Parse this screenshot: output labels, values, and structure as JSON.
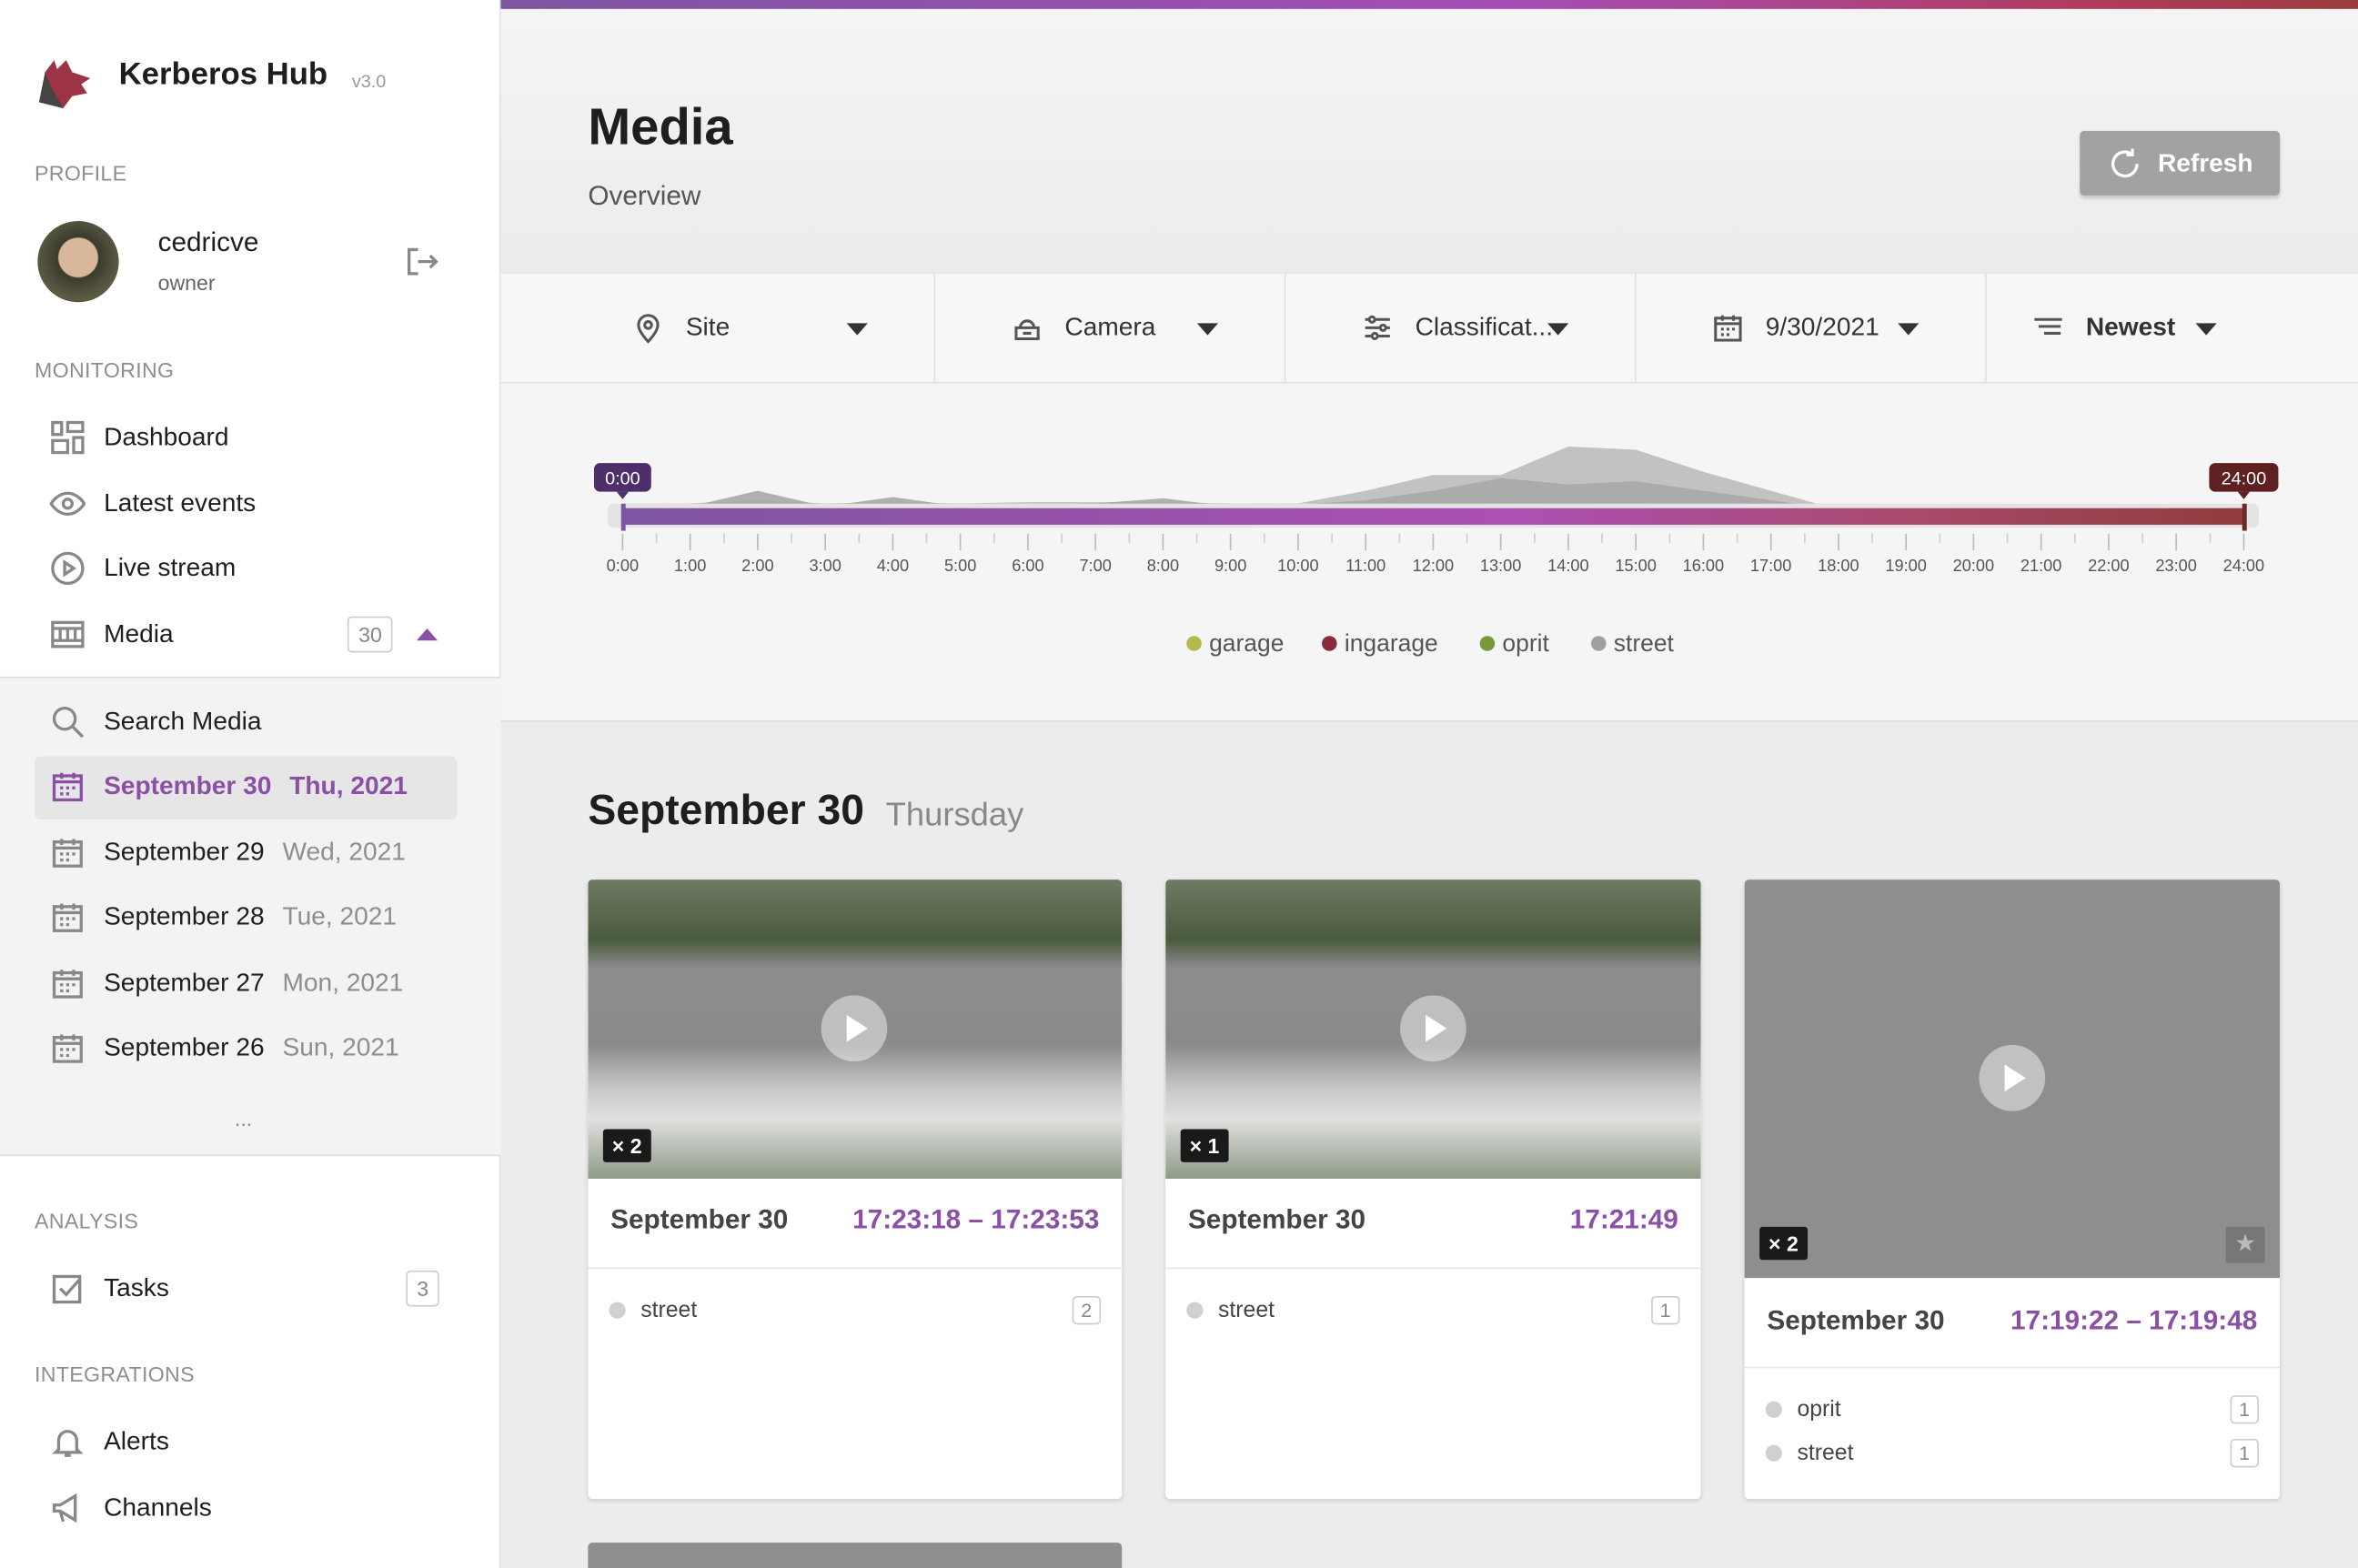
{
  "app": {
    "name": "Kerberos Hub",
    "version": "v3.0"
  },
  "profile": {
    "section": "PROFILE",
    "username": "cedricve",
    "role": "owner"
  },
  "monitoring": {
    "section": "MONITORING",
    "items": [
      {
        "label": "Dashboard",
        "icon": "dashboard-icon"
      },
      {
        "label": "Latest events",
        "icon": "eye-icon"
      },
      {
        "label": "Live stream",
        "icon": "play-circle-icon"
      },
      {
        "label": "Media",
        "icon": "film-icon",
        "count": "30"
      }
    ]
  },
  "media_sub": {
    "search": "Search Media",
    "days": [
      {
        "date": "September 30",
        "day": "Thu, 2021",
        "selected": true
      },
      {
        "date": "September 29",
        "day": "Wed, 2021"
      },
      {
        "date": "September 28",
        "day": "Tue, 2021"
      },
      {
        "date": "September 27",
        "day": "Mon, 2021"
      },
      {
        "date": "September 26",
        "day": "Sun, 2021"
      }
    ],
    "more": "..."
  },
  "analysis": {
    "section": "ANALYSIS",
    "items": [
      {
        "label": "Tasks",
        "count": "3"
      }
    ]
  },
  "integrations": {
    "section": "INTEGRATIONS",
    "items": [
      {
        "label": "Alerts"
      },
      {
        "label": "Channels"
      }
    ]
  },
  "header": {
    "title": "Media",
    "subtitle": "Overview",
    "refresh": "Refresh"
  },
  "filters": {
    "site": "Site",
    "camera": "Camera",
    "classification": "Classificat...",
    "date": "9/30/2021",
    "sort": "Newest"
  },
  "timeline": {
    "start": "0:00",
    "end": "24:00",
    "ticks": [
      "0:00",
      "1:00",
      "2:00",
      "3:00",
      "4:00",
      "5:00",
      "6:00",
      "7:00",
      "8:00",
      "9:00",
      "10:00",
      "11:00",
      "12:00",
      "13:00",
      "14:00",
      "15:00",
      "16:00",
      "17:00",
      "18:00",
      "19:00",
      "20:00",
      "21:00",
      "22:00",
      "23:00",
      "24:00"
    ],
    "legend": [
      {
        "label": "garage",
        "color": "#b5b84a"
      },
      {
        "label": "ingarage",
        "color": "#8a2a3a"
      },
      {
        "label": "oprit",
        "color": "#7a9a3a"
      },
      {
        "label": "street",
        "color": "#a0a0a0"
      }
    ],
    "areas": [
      {
        "hours": [
          0,
          1,
          2,
          3,
          4,
          5,
          6,
          7,
          8,
          9,
          10,
          11,
          12,
          13,
          14,
          15,
          16,
          17,
          18
        ],
        "values": [
          0.1,
          0.1,
          0.15,
          0.1,
          0.12,
          0.1,
          0.12,
          0.12,
          0.12,
          0.1,
          0.1,
          0.3,
          0.55,
          0.55,
          1.0,
          0.95,
          0.6,
          0.3,
          0
        ]
      },
      {
        "hours": [
          0,
          1,
          2,
          3,
          4,
          5,
          6,
          7,
          8,
          9,
          10,
          11,
          12,
          13,
          14,
          15,
          16,
          17,
          18
        ],
        "values": [
          0.05,
          0.05,
          0.3,
          0.05,
          0.2,
          0.05,
          0.08,
          0.1,
          0.18,
          0.05,
          0.08,
          0.15,
          0.3,
          0.5,
          0.4,
          0.45,
          0.3,
          0.15,
          0
        ]
      }
    ]
  },
  "day_heading": {
    "date": "September 30",
    "weekday": "Thursday"
  },
  "cards": [
    {
      "count": "× 2",
      "title": "September 30",
      "time": "17:23:18 – 17:23:53",
      "tags": [
        {
          "label": "street",
          "count": "2"
        }
      ]
    },
    {
      "count": "× 1",
      "title": "September 30",
      "time": "17:21:49",
      "tags": [
        {
          "label": "street",
          "count": "1"
        }
      ]
    },
    {
      "count": "× 2",
      "title": "September 30",
      "time": "17:19:22 – 17:19:48",
      "tags": [
        {
          "label": "oprit",
          "count": "1"
        },
        {
          "label": "street",
          "count": "1"
        }
      ]
    }
  ]
}
